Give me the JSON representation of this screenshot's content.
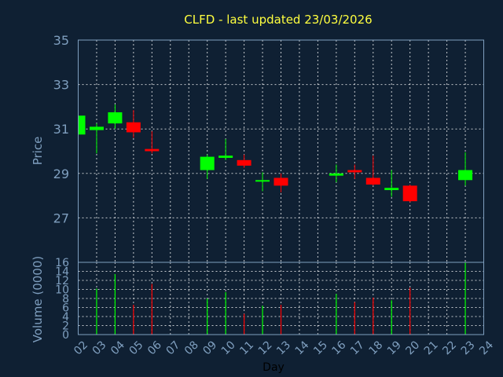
{
  "chart_data": [
    {
      "type": "candlestick",
      "title": "CLFD - last updated 23/03/2026",
      "ylabel": "Price",
      "ylim": [
        25,
        35
      ],
      "yticks": [
        27,
        29,
        31,
        33,
        35
      ],
      "x_ticks": [
        "02",
        "03",
        "04",
        "05",
        "06",
        "07",
        "08",
        "09",
        "10",
        "11",
        "12",
        "13",
        "14",
        "15",
        "16",
        "17",
        "18",
        "19",
        "20",
        "21",
        "22",
        "23",
        "24"
      ],
      "grid": true,
      "colors": {
        "up": "#00ff00",
        "down": "#ff0000",
        "grid": "#ffffff",
        "axis_text": "#7f9fbf",
        "title": "#ffff3f",
        "background": "#0f2033"
      },
      "candles": [
        {
          "day": "02",
          "open": 30.75,
          "high": 31.65,
          "low": 30.75,
          "close": 31.6
        },
        {
          "day": "03",
          "open": 30.95,
          "high": 31.25,
          "low": 29.9,
          "close": 31.1
        },
        {
          "day": "04",
          "open": 31.25,
          "high": 32.1,
          "low": 31.0,
          "close": 31.75
        },
        {
          "day": "05",
          "open": 31.3,
          "high": 31.85,
          "low": 30.6,
          "close": 30.85
        },
        {
          "day": "06",
          "open": 30.1,
          "high": 30.9,
          "low": 29.9,
          "close": 30.0
        },
        {
          "day": "09",
          "open": 29.15,
          "high": 29.85,
          "low": 28.75,
          "close": 29.75
        },
        {
          "day": "10",
          "open": 29.7,
          "high": 30.55,
          "low": 29.6,
          "close": 29.8
        },
        {
          "day": "11",
          "open": 29.6,
          "high": 29.85,
          "low": 29.25,
          "close": 29.35
        },
        {
          "day": "12",
          "open": 28.65,
          "high": 29.05,
          "low": 28.2,
          "close": 28.7
        },
        {
          "day": "13",
          "open": 28.8,
          "high": 29.0,
          "low": 28.15,
          "close": 28.45
        },
        {
          "day": "16",
          "open": 28.9,
          "high": 29.4,
          "low": 28.6,
          "close": 29.0
        },
        {
          "day": "17",
          "open": 29.15,
          "high": 29.4,
          "low": 28.75,
          "close": 29.05
        },
        {
          "day": "18",
          "open": 28.8,
          "high": 29.8,
          "low": 28.45,
          "close": 28.5
        },
        {
          "day": "19",
          "open": 28.25,
          "high": 29.15,
          "low": 27.95,
          "close": 28.35
        },
        {
          "day": "20",
          "open": 28.45,
          "high": 28.5,
          "low": 27.7,
          "close": 27.75
        },
        {
          "day": "23",
          "open": 28.7,
          "high": 29.95,
          "low": 28.45,
          "close": 29.15
        }
      ]
    },
    {
      "type": "bar",
      "ylabel": "Volume (0000)",
      "xlabel": "Day",
      "ylim": [
        0,
        16
      ],
      "yticks": [
        0,
        2,
        4,
        6,
        8,
        10,
        12,
        14,
        16
      ],
      "bars": [
        {
          "day": "03",
          "value": 10.2,
          "direction": "up"
        },
        {
          "day": "04",
          "value": 13.4,
          "direction": "up"
        },
        {
          "day": "05",
          "value": 6.6,
          "direction": "down"
        },
        {
          "day": "06",
          "value": 11.2,
          "direction": "down"
        },
        {
          "day": "09",
          "value": 8.0,
          "direction": "up"
        },
        {
          "day": "10",
          "value": 9.4,
          "direction": "up"
        },
        {
          "day": "11",
          "value": 4.6,
          "direction": "down"
        },
        {
          "day": "12",
          "value": 6.4,
          "direction": "up"
        },
        {
          "day": "13",
          "value": 6.6,
          "direction": "down"
        },
        {
          "day": "16",
          "value": 9.0,
          "direction": "up"
        },
        {
          "day": "17",
          "value": 7.2,
          "direction": "down"
        },
        {
          "day": "18",
          "value": 8.2,
          "direction": "down"
        },
        {
          "day": "19",
          "value": 7.6,
          "direction": "up"
        },
        {
          "day": "20",
          "value": 10.4,
          "direction": "down"
        },
        {
          "day": "23",
          "value": 16.0,
          "direction": "up"
        }
      ]
    }
  ]
}
